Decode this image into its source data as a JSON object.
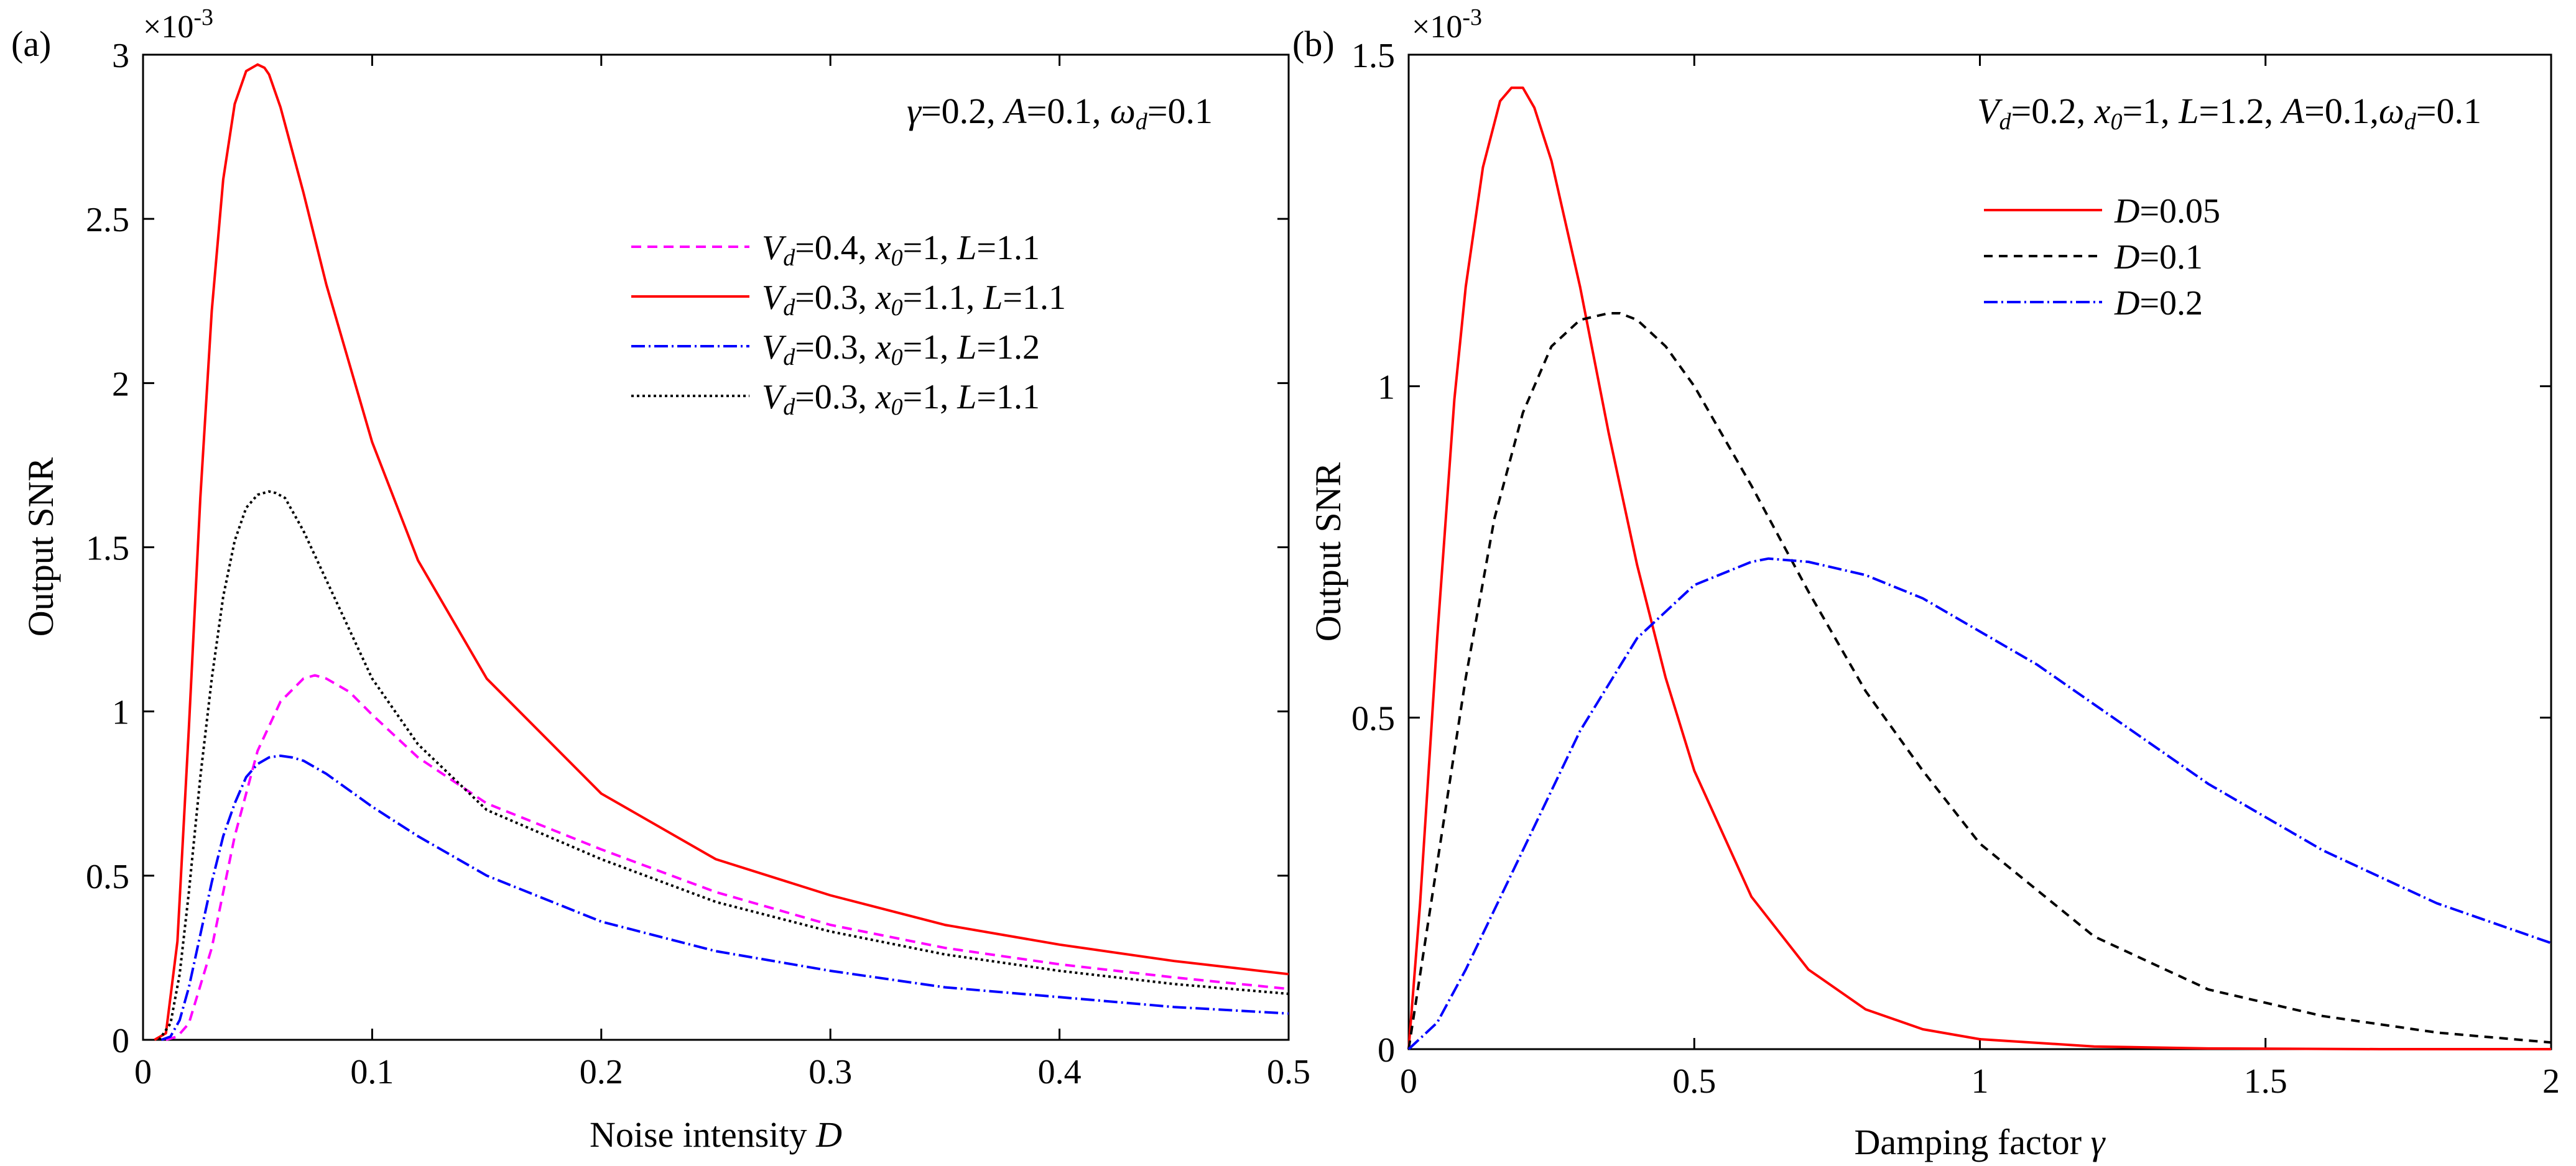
{
  "figure": {
    "panels": [
      {
        "id": "a",
        "panel_label": "(a)",
        "exponent_label": "×10-3",
        "exponent_base": "×10",
        "exponent_power": "-3",
        "params_text": {
          "p1_sym": "γ",
          "p1_val": "=0.2, ",
          "p2_sym": "A",
          "p2_val": "=0.1, ",
          "p3_sym": "ω",
          "p3_sub": "d",
          "p3_val": "=0.1"
        },
        "chart_data": {
          "type": "line",
          "xlabel": "Noise intensity D",
          "xlabel_text": "Noise intensity ",
          "xlabel_var": "D",
          "ylabel": "Output SNR",
          "xlim": [
            0,
            0.5
          ],
          "ylim": [
            0,
            3
          ],
          "y_scale_note": "×10^-3",
          "xticks": [
            0,
            0.1,
            0.2,
            0.3,
            0.4,
            0.5
          ],
          "xtick_labels": [
            "0",
            "0.1",
            "0.2",
            "0.3",
            "0.4",
            "0.5"
          ],
          "yticks": [
            0,
            0.5,
            1,
            1.5,
            2,
            2.5,
            3
          ],
          "ytick_labels": [
            "0",
            "0.5",
            "1",
            "1.5",
            "2",
            "2.5",
            "3"
          ],
          "legend_position": "upper-right",
          "series": [
            {
              "name": "Vd=0.4, x0=1, L=1.1",
              "legend": {
                "a_sym": "V",
                "a_sub": "d",
                "a_val": "=0.4, ",
                "b_sym": "x",
                "b_sub": "0",
                "b_val": "=1, ",
                "c_sym": "L",
                "c_val": "=1.1"
              },
              "color": "#ff00ff",
              "dash": "16,10",
              "x": [
                0.01,
                0.015,
                0.02,
                0.03,
                0.04,
                0.05,
                0.06,
                0.07,
                0.075,
                0.08,
                0.09,
                0.1,
                0.12,
                0.15,
                0.2,
                0.25,
                0.3,
                0.35,
                0.4,
                0.45,
                0.5
              ],
              "y": [
                0,
                0.01,
                0.05,
                0.28,
                0.62,
                0.88,
                1.03,
                1.1,
                1.11,
                1.1,
                1.06,
                0.99,
                0.86,
                0.72,
                0.58,
                0.45,
                0.35,
                0.28,
                0.23,
                0.19,
                0.155
              ]
            },
            {
              "name": "Vd=0.3, x0=1.1, L=1.1",
              "legend": {
                "a_sym": "V",
                "a_sub": "d",
                "a_val": "=0.3, ",
                "b_sym": "x",
                "b_sub": "0",
                "b_val": "=1.1, ",
                "c_sym": "L",
                "c_val": "=1.1"
              },
              "color": "#ff0000",
              "dash": "none",
              "x": [
                0.005,
                0.01,
                0.015,
                0.02,
                0.025,
                0.03,
                0.035,
                0.04,
                0.045,
                0.05,
                0.053,
                0.055,
                0.06,
                0.07,
                0.08,
                0.1,
                0.12,
                0.15,
                0.2,
                0.25,
                0.3,
                0.35,
                0.4,
                0.45,
                0.5
              ],
              "y": [
                0,
                0.02,
                0.3,
                0.95,
                1.65,
                2.22,
                2.62,
                2.85,
                2.95,
                2.97,
                2.96,
                2.94,
                2.84,
                2.58,
                2.3,
                1.82,
                1.46,
                1.1,
                0.75,
                0.55,
                0.44,
                0.35,
                0.29,
                0.24,
                0.2
              ]
            },
            {
              "name": "Vd=0.3, x0=1, L=1.2",
              "legend": {
                "a_sym": "V",
                "a_sub": "d",
                "a_val": "=0.3, ",
                "b_sym": "x",
                "b_sub": "0",
                "b_val": "=1, ",
                "c_sym": "L",
                "c_val": "=1.2"
              },
              "color": "#0000ff",
              "dash": "22,6,3,6",
              "x": [
                0.008,
                0.012,
                0.016,
                0.02,
                0.025,
                0.03,
                0.035,
                0.04,
                0.045,
                0.05,
                0.055,
                0.06,
                0.065,
                0.07,
                0.08,
                0.09,
                0.1,
                0.12,
                0.15,
                0.2,
                0.25,
                0.3,
                0.35,
                0.4,
                0.45,
                0.5
              ],
              "y": [
                0,
                0.01,
                0.06,
                0.16,
                0.32,
                0.48,
                0.62,
                0.72,
                0.8,
                0.84,
                0.86,
                0.865,
                0.86,
                0.85,
                0.81,
                0.76,
                0.71,
                0.62,
                0.5,
                0.36,
                0.27,
                0.21,
                0.16,
                0.13,
                0.1,
                0.08
              ]
            },
            {
              "name": "Vd=0.3, x0=1, L=1.1",
              "legend": {
                "a_sym": "V",
                "a_sub": "d",
                "a_val": "=0.3, ",
                "b_sym": "x",
                "b_sub": "0",
                "b_val": "=1, ",
                "c_sym": "L",
                "c_val": "=1.1"
              },
              "color": "#000000",
              "dash": "4,5",
              "x": [
                0.007,
                0.012,
                0.016,
                0.02,
                0.025,
                0.03,
                0.035,
                0.04,
                0.045,
                0.05,
                0.055,
                0.058,
                0.062,
                0.07,
                0.08,
                0.1,
                0.12,
                0.15,
                0.2,
                0.25,
                0.3,
                0.35,
                0.4,
                0.45,
                0.5
              ],
              "y": [
                0,
                0.05,
                0.2,
                0.45,
                0.8,
                1.1,
                1.35,
                1.52,
                1.62,
                1.66,
                1.67,
                1.665,
                1.65,
                1.55,
                1.4,
                1.1,
                0.9,
                0.7,
                0.55,
                0.42,
                0.33,
                0.26,
                0.21,
                0.17,
                0.14
              ]
            }
          ]
        }
      },
      {
        "id": "b",
        "panel_label": "(b)",
        "exponent_label": "×10-3",
        "exponent_base": "×10",
        "exponent_power": "-3",
        "params_text": {
          "p1_sym": "V",
          "p1_sub": "d",
          "p1_val": "=0.2, ",
          "p2_sym": "x",
          "p2_sub": "0",
          "p2_val": "=1, ",
          "p3_sym": "L",
          "p3_val": "=1.2, ",
          "p4_sym": "A",
          "p4_val": "=0.1,",
          "p5_sym": "ω",
          "p5_sub": "d",
          "p5_val": "=0.1"
        },
        "chart_data": {
          "type": "line",
          "xlabel": "Damping factor γ",
          "xlabel_text": "Damping factor ",
          "xlabel_var": "γ",
          "ylabel": "Output SNR",
          "xlim": [
            0,
            2
          ],
          "ylim": [
            0,
            1.5
          ],
          "y_scale_note": "×10^-3",
          "xticks": [
            0,
            0.5,
            1,
            1.5,
            2
          ],
          "xtick_labels": [
            "0",
            "0.5",
            "1",
            "1.5",
            "2"
          ],
          "yticks": [
            0,
            0.5,
            1,
            1.5
          ],
          "ytick_labels": [
            "0",
            "0.5",
            "1",
            "1.5"
          ],
          "legend_position": "upper-center",
          "series": [
            {
              "name": "D=0.05",
              "legend": {
                "a_sym": "D",
                "a_val": "=0.05"
              },
              "color": "#ff0000",
              "dash": "none",
              "x": [
                0,
                0.02,
                0.05,
                0.08,
                0.1,
                0.13,
                0.16,
                0.18,
                0.2,
                0.22,
                0.25,
                0.3,
                0.35,
                0.4,
                0.45,
                0.5,
                0.6,
                0.7,
                0.8,
                0.9,
                1.0,
                1.2,
                1.4,
                1.7,
                2.0
              ],
              "y": [
                0,
                0.22,
                0.62,
                0.98,
                1.15,
                1.33,
                1.43,
                1.45,
                1.45,
                1.42,
                1.34,
                1.15,
                0.93,
                0.73,
                0.56,
                0.42,
                0.23,
                0.12,
                0.06,
                0.03,
                0.015,
                0.004,
                0.001,
                0,
                0
              ]
            },
            {
              "name": "D=0.1",
              "legend": {
                "a_sym": "D",
                "a_val": "=0.1"
              },
              "color": "#000000",
              "dash": "14,10",
              "x": [
                0,
                0.05,
                0.1,
                0.15,
                0.2,
                0.25,
                0.3,
                0.35,
                0.37,
                0.4,
                0.45,
                0.5,
                0.6,
                0.7,
                0.8,
                0.9,
                1.0,
                1.2,
                1.4,
                1.6,
                1.8,
                2.0
              ],
              "y": [
                0,
                0.28,
                0.56,
                0.8,
                0.96,
                1.06,
                1.1,
                1.11,
                1.11,
                1.1,
                1.06,
                1.0,
                0.85,
                0.69,
                0.54,
                0.42,
                0.31,
                0.17,
                0.09,
                0.05,
                0.025,
                0.01
              ]
            },
            {
              "name": "D=0.2",
              "legend": {
                "a_sym": "D",
                "a_val": "=0.2"
              },
              "color": "#0000ff",
              "dash": "22,6,3,6",
              "x": [
                0,
                0.05,
                0.1,
                0.2,
                0.3,
                0.4,
                0.5,
                0.6,
                0.63,
                0.7,
                0.8,
                0.9,
                1.0,
                1.1,
                1.2,
                1.3,
                1.4,
                1.5,
                1.6,
                1.7,
                1.8,
                1.9,
                2.0
              ],
              "y": [
                0,
                0.04,
                0.12,
                0.3,
                0.48,
                0.62,
                0.7,
                0.735,
                0.74,
                0.735,
                0.715,
                0.68,
                0.63,
                0.58,
                0.52,
                0.46,
                0.4,
                0.35,
                0.3,
                0.26,
                0.22,
                0.19,
                0.16
              ]
            }
          ]
        }
      }
    ]
  }
}
